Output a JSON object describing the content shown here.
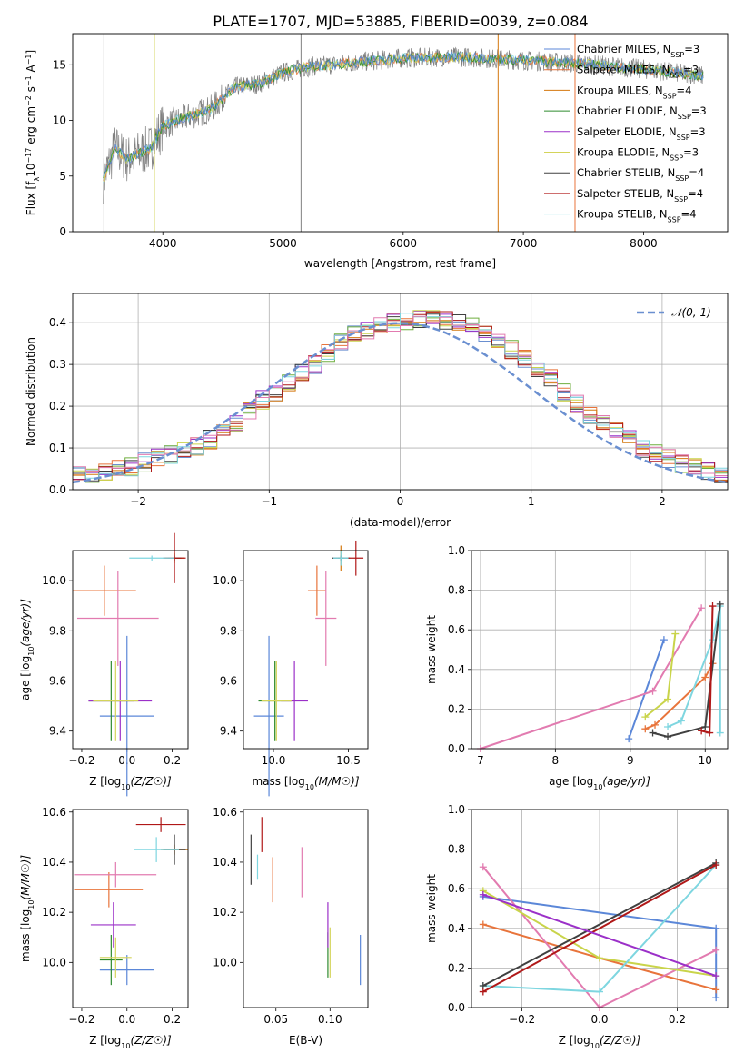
{
  "figure": {
    "title": "PLATE=1707, MJD=53885, FIBERID=0039, z=0.084"
  },
  "model_names": [
    "Chabrier MILES",
    "Salpeter MILES",
    "Kroupa MILES",
    "Chabrier ELODIE",
    "Salpeter ELODIE",
    "Kroupa ELODIE",
    "Chabrier STELIB",
    "Salpeter STELIB",
    "Kroupa STELIB"
  ],
  "model_colors": [
    "#5b87d8",
    "#e8743b",
    "#d4780f",
    "#2e8b2e",
    "#9b30c8",
    "#d4d45a",
    "#404040",
    "#b01818",
    "#7ed6e0"
  ],
  "chart_data": [
    {
      "id": "spectrum",
      "type": "line",
      "title": "PLATE=1707, MJD=53885, FIBERID=0039, z=0.084",
      "xlabel": "wavelength [Angstrom, rest frame]",
      "ylabel": "Flux [f_λ10^-17 erg cm^-2 s^-1 A^-1]",
      "xlim": [
        3250,
        8700
      ],
      "ylim": [
        0,
        17.8
      ],
      "xticks": [
        4000,
        5000,
        6000,
        7000,
        8000
      ],
      "yticks": [
        0,
        5,
        10,
        15
      ],
      "legend_position": "right",
      "series": [
        {
          "name": "Chabrier MILES, N_SSP=3"
        },
        {
          "name": "Salpeter MILES, N_SSP=3"
        },
        {
          "name": "Kroupa MILES, N_SSP=4"
        },
        {
          "name": "Chabrier ELODIE, N_SSP=3"
        },
        {
          "name": "Salpeter ELODIE, N_SSP=3"
        },
        {
          "name": "Kroupa ELODIE, N_SSP=3"
        },
        {
          "name": "Chabrier STELIB, N_SSP=4"
        },
        {
          "name": "Salpeter STELIB, N_SSP=4"
        },
        {
          "name": "Kroupa STELIB, N_SSP=4"
        }
      ],
      "continuum": {
        "x": [
          3500,
          3600,
          3700,
          3800,
          3900,
          4000,
          4200,
          4400,
          4600,
          4800,
          5000,
          5200,
          5500,
          6000,
          6500,
          7000,
          7500,
          8000,
          8500
        ],
        "y": [
          4.5,
          7.5,
          6.5,
          7.0,
          7.5,
          9.5,
          10.3,
          11.0,
          13.0,
          13.3,
          14.3,
          14.8,
          15.1,
          15.6,
          15.7,
          15.4,
          15.1,
          14.6,
          14.0
        ]
      },
      "grid": false
    },
    {
      "id": "residuals",
      "type": "histogram",
      "xlabel": "(data-model)/error",
      "ylabel": "Normed distribution",
      "xlim": [
        -2.5,
        2.5
      ],
      "ylim": [
        0,
        0.47
      ],
      "xticks": [
        -2,
        -1,
        0,
        1,
        2
      ],
      "yticks": [
        0.0,
        0.1,
        0.2,
        0.3,
        0.4
      ],
      "grid": true,
      "legend_position": "top-right",
      "reference": {
        "name": "N(0,1)",
        "color": "#6a8fd0"
      },
      "bin_edges_start": -2.5,
      "bin_width": 0.1,
      "base_values": [
        0.035,
        0.04,
        0.045,
        0.05,
        0.055,
        0.065,
        0.075,
        0.085,
        0.095,
        0.105,
        0.12,
        0.14,
        0.16,
        0.19,
        0.215,
        0.23,
        0.255,
        0.28,
        0.3,
        0.325,
        0.35,
        0.37,
        0.38,
        0.39,
        0.4,
        0.405,
        0.41,
        0.41,
        0.405,
        0.4,
        0.39,
        0.375,
        0.355,
        0.335,
        0.315,
        0.29,
        0.265,
        0.235,
        0.205,
        0.18,
        0.16,
        0.14,
        0.12,
        0.1,
        0.085,
        0.075,
        0.062,
        0.052,
        0.045,
        0.035
      ]
    },
    {
      "id": "z-vs-age",
      "type": "scatter",
      "xlabel": "Z [log10(Z/Z☉)]",
      "ylabel": "age  [log10(age/yr)]",
      "xlim": [
        -0.24,
        0.27
      ],
      "ylim": [
        9.33,
        10.12
      ],
      "xticks": [
        -0.2,
        0.0,
        0.2
      ],
      "yticks": [
        9.4,
        9.6,
        9.8,
        10.0
      ],
      "points": [
        {
          "model": 0,
          "x": 0.0,
          "xerr": 0.12,
          "y": 9.46,
          "yerr": 0.32
        },
        {
          "model": 1,
          "x": -0.1,
          "xerr": 0.14,
          "y": 9.96,
          "yerr": 0.1
        },
        {
          "model": 2,
          "x": 0.21,
          "xerr": 0.04,
          "y": 10.09,
          "yerr": 0.02
        },
        {
          "model": 3,
          "x": -0.07,
          "xerr": 0.1,
          "y": 9.52,
          "yerr": 0.16
        },
        {
          "model": 4,
          "x": -0.03,
          "xerr": 0.14,
          "y": 9.52,
          "yerr": 0.16
        },
        {
          "model": 5,
          "x": -0.05,
          "xerr": 0.1,
          "y": 9.52,
          "yerr": 0.16
        },
        {
          "model": 6,
          "x": 0.21,
          "xerr": 0.03,
          "y": 10.09,
          "yerr": 0.01
        },
        {
          "model": 7,
          "x": 0.21,
          "xerr": 0.05,
          "y": 10.09,
          "yerr": 0.1
        },
        {
          "model": 8,
          "x": 0.11,
          "xerr": 0.1,
          "y": 10.09,
          "yerr": 0.01
        },
        {
          "model": 8,
          "x": -0.04,
          "xerr": 0.18,
          "y": 9.85,
          "yerr": 0.19,
          "color": "#e27bb0"
        }
      ]
    },
    {
      "id": "mass-vs-age",
      "type": "scatter",
      "xlabel": "mass [log10(M/M☉)]",
      "ylabel": "",
      "xlim": [
        9.8,
        10.63
      ],
      "ylim": [
        9.33,
        10.12
      ],
      "xticks": [
        10.0,
        10.5
      ],
      "yticks": [
        9.4,
        9.6,
        9.8,
        10.0
      ],
      "points": [
        {
          "model": 0,
          "x": 9.97,
          "xerr": 0.1,
          "y": 9.46,
          "yerr": 0.32
        },
        {
          "model": 1,
          "x": 10.29,
          "xerr": 0.06,
          "y": 9.96,
          "yerr": 0.1
        },
        {
          "model": 2,
          "x": 10.45,
          "xerr": 0.02,
          "y": 10.09,
          "yerr": 0.05
        },
        {
          "model": 3,
          "x": 10.01,
          "xerr": 0.11,
          "y": 9.52,
          "yerr": 0.16
        },
        {
          "model": 4,
          "x": 10.14,
          "xerr": 0.09,
          "y": 9.52,
          "yerr": 0.16
        },
        {
          "model": 5,
          "x": 10.02,
          "xerr": 0.1,
          "y": 9.52,
          "yerr": 0.16
        },
        {
          "model": 6,
          "x": 10.45,
          "xerr": 0.06,
          "y": 10.09,
          "yerr": 0.01
        },
        {
          "model": 7,
          "x": 10.55,
          "xerr": 0.05,
          "y": 10.09,
          "yerr": 0.07
        },
        {
          "model": 8,
          "x": 10.45,
          "xerr": 0.05,
          "y": 10.09,
          "yerr": 0.03
        },
        {
          "model": 8,
          "x": 10.35,
          "xerr": 0.07,
          "y": 9.85,
          "yerr": 0.19,
          "color": "#e27bb0"
        }
      ]
    },
    {
      "id": "age-vs-weight",
      "type": "line",
      "xlabel": "age  [log10(age/yr)]",
      "ylabel": "mass weight",
      "xlim": [
        6.88,
        10.3
      ],
      "ylim": [
        0,
        1.0
      ],
      "xticks": [
        7,
        8,
        9,
        10
      ],
      "yticks": [
        0.0,
        0.2,
        0.4,
        0.6,
        0.8,
        1.0
      ],
      "grid": true,
      "series": [
        {
          "color": "#5b87d8",
          "x": [
            8.98,
            9.45
          ],
          "y": [
            0.05,
            0.55
          ]
        },
        {
          "color": "#e8743b",
          "x": [
            9.2,
            9.33,
            10.0,
            10.1
          ],
          "y": [
            0.1,
            0.12,
            0.36,
            0.43
          ]
        },
        {
          "color": "#e27bb0",
          "x": [
            7.0,
            9.3,
            9.95
          ],
          "y": [
            0.0,
            0.29,
            0.71
          ]
        },
        {
          "color": "#c9d44a",
          "x": [
            9.2,
            9.5,
            9.6
          ],
          "y": [
            0.16,
            0.25,
            0.58
          ]
        },
        {
          "color": "#7ed6e0",
          "x": [
            9.5,
            9.68,
            10.1,
            10.2,
            10.2
          ],
          "y": [
            0.11,
            0.14,
            0.55,
            0.72,
            0.08
          ]
        },
        {
          "color": "#404040",
          "x": [
            9.3,
            9.5,
            10.0,
            10.2
          ],
          "y": [
            0.08,
            0.06,
            0.11,
            0.73
          ]
        },
        {
          "color": "#b01818",
          "x": [
            9.95,
            10.06,
            10.1
          ],
          "y": [
            0.09,
            0.08,
            0.72
          ]
        }
      ]
    },
    {
      "id": "z-vs-mass",
      "type": "scatter",
      "xlabel": "Z [log10(Z/Z☉)]",
      "ylabel": "mass [log10(M/M☉)]",
      "xlim": [
        -0.24,
        0.27
      ],
      "ylim": [
        9.82,
        10.61
      ],
      "xticks": [
        -0.2,
        0.0,
        0.2
      ],
      "yticks": [
        10.0,
        10.2,
        10.4,
        10.6
      ],
      "points": [
        {
          "model": 0,
          "x": 0.0,
          "xerr": 0.12,
          "y": 9.97,
          "yerr": 0.06
        },
        {
          "model": 1,
          "x": -0.08,
          "xerr": 0.15,
          "y": 10.29,
          "yerr": 0.07
        },
        {
          "model": 2,
          "x": 0.21,
          "xerr": 0.06,
          "y": 10.45,
          "yerr": 0.02
        },
        {
          "model": 3,
          "x": -0.07,
          "xerr": 0.05,
          "y": 10.01,
          "yerr": 0.1
        },
        {
          "model": 4,
          "x": -0.06,
          "xerr": 0.1,
          "y": 10.15,
          "yerr": 0.09
        },
        {
          "model": 5,
          "x": -0.05,
          "xerr": 0.07,
          "y": 10.02,
          "yerr": 0.08
        },
        {
          "model": 6,
          "x": 0.21,
          "xerr": 0.05,
          "y": 10.45,
          "yerr": 0.06
        },
        {
          "model": 7,
          "x": 0.15,
          "xerr": 0.11,
          "y": 10.55,
          "yerr": 0.03
        },
        {
          "model": 8,
          "x": 0.13,
          "xerr": 0.1,
          "y": 10.45,
          "yerr": 0.05
        },
        {
          "model": 8,
          "x": -0.05,
          "xerr": 0.18,
          "y": 10.35,
          "yerr": 0.05,
          "color": "#e27bb0"
        }
      ]
    },
    {
      "id": "ebv-vs-mass",
      "type": "scatter",
      "xlabel": "E(B-V)",
      "ylabel": "",
      "xlim": [
        0.02,
        0.135
      ],
      "ylim": [
        9.82,
        10.61
      ],
      "xticks": [
        0.05,
        0.1
      ],
      "yticks": [
        10.0,
        10.2,
        10.4,
        10.6
      ],
      "points": [
        {
          "model": 0,
          "x": 0.128,
          "xerr": 0,
          "y": 10.01,
          "yerr": 0.1
        },
        {
          "model": 1,
          "x": 0.047,
          "xerr": 0,
          "y": 10.33,
          "yerr": 0.09
        },
        {
          "model": 3,
          "x": 0.098,
          "xerr": 0,
          "y": 10.03,
          "yerr": 0.09
        },
        {
          "model": 4,
          "x": 0.098,
          "xerr": 0,
          "y": 10.15,
          "yerr": 0.09
        },
        {
          "model": 5,
          "x": 0.1,
          "xerr": 0,
          "y": 10.04,
          "yerr": 0.1
        },
        {
          "model": 6,
          "x": 0.027,
          "xerr": 0,
          "y": 10.41,
          "yerr": 0.1
        },
        {
          "model": 7,
          "x": 0.037,
          "xerr": 0,
          "y": 10.51,
          "yerr": 0.07
        },
        {
          "model": 8,
          "x": 0.033,
          "xerr": 0,
          "y": 10.38,
          "yerr": 0.05
        },
        {
          "model": 8,
          "x": 0.074,
          "xerr": 0,
          "y": 10.36,
          "yerr": 0.1,
          "color": "#e27bb0"
        }
      ]
    },
    {
      "id": "z-vs-weight",
      "type": "line",
      "xlabel": "Z [log10(Z/Z☉)]",
      "ylabel": "mass weight",
      "xlim": [
        -0.33,
        0.33
      ],
      "ylim": [
        0,
        1.0
      ],
      "xticks": [
        -0.2,
        0.0,
        0.2
      ],
      "yticks": [
        0.0,
        0.2,
        0.4,
        0.6,
        0.8,
        1.0
      ],
      "grid": true,
      "series": [
        {
          "color": "#5b87d8",
          "x": [
            -0.3,
            0.3,
            0.3
          ],
          "y": [
            0.56,
            0.4,
            0.05
          ]
        },
        {
          "color": "#e8743b",
          "x": [
            -0.3,
            0.0,
            0.3
          ],
          "y": [
            0.42,
            0.25,
            0.09
          ]
        },
        {
          "color": "#e27bb0",
          "x": [
            -0.3,
            0.0,
            0.3
          ],
          "y": [
            0.71,
            0.0,
            0.29
          ]
        },
        {
          "color": "#c9d44a",
          "x": [
            -0.3,
            0.0,
            0.3
          ],
          "y": [
            0.59,
            0.25,
            0.16
          ]
        },
        {
          "color": "#7ed6e0",
          "x": [
            -0.3,
            0.0,
            0.3
          ],
          "y": [
            0.11,
            0.08,
            0.72
          ]
        },
        {
          "color": "#404040",
          "x": [
            -0.3,
            0.3
          ],
          "y": [
            0.11,
            0.73
          ]
        },
        {
          "color": "#b01818",
          "x": [
            -0.3,
            0.3
          ],
          "y": [
            0.08,
            0.72
          ]
        },
        {
          "color": "#9b30c8",
          "x": [
            -0.3,
            0.3
          ],
          "y": [
            0.57,
            0.16
          ]
        }
      ]
    }
  ]
}
